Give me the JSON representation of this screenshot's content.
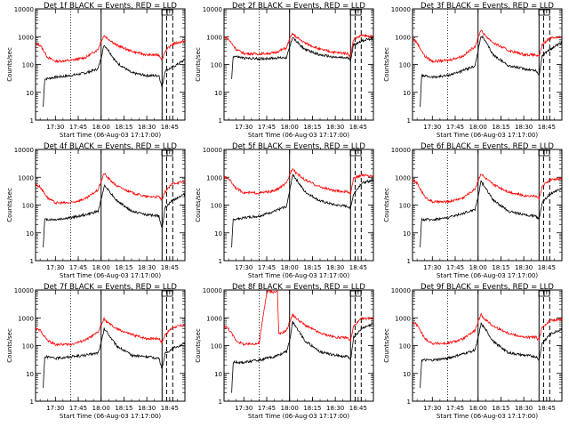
{
  "layout": {
    "rows": 3,
    "cols": 3
  },
  "common": {
    "ylabel": "Counts/sec",
    "xlabel": "Start Time (06-Aug-03 17:17:00)",
    "xticks": [
      "17:30",
      "17:45",
      "18:00",
      "18:15",
      "18:30",
      "18:45"
    ],
    "yticks": [
      "1",
      "10",
      "100",
      "1000",
      "10000"
    ],
    "yscale": "log",
    "ylim": [
      1,
      10000
    ],
    "xlim": [
      "17:17:00",
      "18:55:00"
    ],
    "grid": false,
    "colors": {
      "events": "#000000",
      "lld": "#ff0000"
    },
    "marks": {
      "dotted": "17:40",
      "solid": [
        "18:00",
        "18:40"
      ],
      "dashed": [
        "18:43",
        "18:47"
      ],
      "box": "18:41"
    }
  },
  "chart_data": [
    {
      "type": "line",
      "title": "Det 1f BLACK = Events, RED = LLD",
      "series": [
        {
          "name": "Events",
          "x": [
            "17:22",
            "17:23",
            "17:30",
            "17:40",
            "17:50",
            "17:58",
            "18:00",
            "18:02",
            "18:04",
            "18:10",
            "18:20",
            "18:30",
            "18:38",
            "18:40",
            "18:42",
            "18:47",
            "18:55"
          ],
          "values": [
            3,
            30,
            35,
            40,
            50,
            70,
            180,
            500,
            380,
            120,
            50,
            40,
            40,
            15,
            60,
            80,
            150
          ]
        },
        {
          "name": "LLD",
          "x": [
            "17:17",
            "17:20",
            "17:25",
            "17:30",
            "17:40",
            "17:50",
            "17:58",
            "18:00",
            "18:02",
            "18:04",
            "18:10",
            "18:20",
            "18:30",
            "18:38",
            "18:40",
            "18:42",
            "18:47",
            "18:55"
          ],
          "values": [
            550,
            500,
            180,
            130,
            140,
            180,
            350,
            700,
            1100,
            900,
            500,
            300,
            220,
            220,
            150,
            300,
            550,
            700
          ]
        }
      ]
    },
    {
      "type": "line",
      "title": "Det 2f BLACK = Events, RED = LLD",
      "series": [
        {
          "name": "Events",
          "x": [
            "17:22",
            "17:23",
            "17:30",
            "17:40",
            "17:50",
            "17:58",
            "18:00",
            "18:02",
            "18:04",
            "18:10",
            "18:20",
            "18:30",
            "18:38",
            "18:40",
            "18:42",
            "18:47",
            "18:55"
          ],
          "values": [
            30,
            200,
            170,
            160,
            170,
            180,
            400,
            1000,
            700,
            350,
            220,
            180,
            170,
            150,
            500,
            700,
            900
          ]
        },
        {
          "name": "LLD",
          "x": [
            "17:17",
            "17:20",
            "17:25",
            "17:30",
            "17:40",
            "17:50",
            "17:58",
            "18:00",
            "18:02",
            "18:04",
            "18:10",
            "18:20",
            "18:30",
            "18:38",
            "18:40",
            "18:42",
            "18:47",
            "18:55"
          ],
          "values": [
            1000,
            800,
            350,
            250,
            240,
            260,
            400,
            800,
            1300,
            1000,
            600,
            350,
            270,
            250,
            200,
            800,
            1100,
            1000
          ]
        }
      ]
    },
    {
      "type": "line",
      "title": "Det 3f BLACK = Events, RED = LLD",
      "series": [
        {
          "name": "Events",
          "x": [
            "17:22",
            "17:23",
            "17:30",
            "17:40",
            "17:50",
            "17:58",
            "18:00",
            "18:02",
            "18:04",
            "18:10",
            "18:20",
            "18:30",
            "18:38",
            "18:40",
            "18:42",
            "18:47",
            "18:55"
          ],
          "values": [
            3,
            40,
            35,
            40,
            60,
            90,
            300,
            1100,
            800,
            220,
            90,
            70,
            60,
            40,
            200,
            350,
            600
          ]
        },
        {
          "name": "LLD",
          "x": [
            "17:17",
            "17:20",
            "17:25",
            "17:30",
            "17:40",
            "17:50",
            "17:58",
            "18:00",
            "18:02",
            "18:04",
            "18:10",
            "18:20",
            "18:30",
            "18:38",
            "18:40",
            "18:42",
            "18:47",
            "18:55"
          ],
          "values": [
            900,
            600,
            200,
            130,
            140,
            200,
            450,
            900,
            1800,
            1200,
            600,
            320,
            230,
            220,
            180,
            500,
            900,
            1000
          ]
        }
      ]
    },
    {
      "type": "line",
      "title": "Det 4f BLACK = Events, RED = LLD",
      "series": [
        {
          "name": "Events",
          "x": [
            "17:22",
            "17:23",
            "17:30",
            "17:40",
            "17:50",
            "17:58",
            "18:00",
            "18:02",
            "18:04",
            "18:10",
            "18:20",
            "18:30",
            "18:38",
            "18:40",
            "18:42",
            "18:47",
            "18:55"
          ],
          "values": [
            3,
            30,
            30,
            35,
            45,
            60,
            150,
            500,
            400,
            150,
            60,
            45,
            40,
            15,
            80,
            150,
            250
          ]
        },
        {
          "name": "LLD",
          "x": [
            "17:17",
            "17:20",
            "17:25",
            "17:30",
            "17:40",
            "17:50",
            "17:58",
            "18:00",
            "18:02",
            "18:04",
            "18:10",
            "18:20",
            "18:30",
            "18:38",
            "18:40",
            "18:42",
            "18:47",
            "18:55"
          ],
          "values": [
            550,
            450,
            180,
            120,
            120,
            170,
            350,
            700,
            1400,
            1000,
            500,
            280,
            200,
            200,
            150,
            300,
            600,
            700
          ]
        }
      ]
    },
    {
      "type": "line",
      "title": "Det 5f BLACK = Events, RED = LLD",
      "series": [
        {
          "name": "Events",
          "x": [
            "17:22",
            "17:23",
            "17:30",
            "17:40",
            "17:50",
            "17:58",
            "18:00",
            "18:02",
            "18:04",
            "18:10",
            "18:20",
            "18:30",
            "18:38",
            "18:40",
            "18:42",
            "18:47",
            "18:55"
          ],
          "values": [
            3,
            30,
            35,
            40,
            60,
            90,
            300,
            1300,
            900,
            300,
            140,
            100,
            90,
            80,
            250,
            600,
            800
          ]
        },
        {
          "name": "LLD",
          "x": [
            "17:17",
            "17:20",
            "17:25",
            "17:30",
            "17:40",
            "17:50",
            "17:58",
            "18:00",
            "18:02",
            "18:04",
            "18:10",
            "18:20",
            "18:30",
            "18:38",
            "18:40",
            "18:42",
            "18:47",
            "18:55"
          ],
          "values": [
            1000,
            900,
            400,
            280,
            270,
            320,
            600,
            1200,
            2200,
            1500,
            800,
            450,
            320,
            300,
            250,
            900,
            1200,
            1100
          ]
        }
      ]
    },
    {
      "type": "line",
      "title": "Det 6f BLACK = Events, RED = LLD",
      "series": [
        {
          "name": "Events",
          "x": [
            "17:22",
            "17:23",
            "17:30",
            "17:40",
            "17:50",
            "17:58",
            "18:00",
            "18:02",
            "18:04",
            "18:10",
            "18:20",
            "18:30",
            "18:38",
            "18:40",
            "18:42",
            "18:47",
            "18:55"
          ],
          "values": [
            3,
            30,
            30,
            35,
            50,
            70,
            200,
            700,
            500,
            150,
            60,
            45,
            40,
            30,
            120,
            250,
            400
          ]
        },
        {
          "name": "LLD",
          "x": [
            "17:17",
            "17:20",
            "17:25",
            "17:30",
            "17:40",
            "17:50",
            "17:58",
            "18:00",
            "18:02",
            "18:04",
            "18:10",
            "18:20",
            "18:30",
            "18:38",
            "18:40",
            "18:42",
            "18:47",
            "18:55"
          ],
          "values": [
            800,
            600,
            200,
            130,
            130,
            180,
            380,
            750,
            1400,
            1000,
            550,
            300,
            220,
            210,
            170,
            450,
            800,
            900
          ]
        }
      ]
    },
    {
      "type": "line",
      "title": "Det 7f BLACK = Events, RED = LLD",
      "series": [
        {
          "name": "Events",
          "x": [
            "17:22",
            "17:23",
            "17:30",
            "17:40",
            "17:50",
            "17:58",
            "18:00",
            "18:02",
            "18:04",
            "18:10",
            "18:20",
            "18:30",
            "18:38",
            "18:40",
            "18:42",
            "18:47",
            "18:55"
          ],
          "values": [
            3,
            40,
            35,
            40,
            45,
            55,
            120,
            400,
            300,
            100,
            45,
            40,
            35,
            15,
            50,
            80,
            120
          ]
        },
        {
          "name": "LLD",
          "x": [
            "17:17",
            "17:20",
            "17:25",
            "17:30",
            "17:40",
            "17:50",
            "17:58",
            "18:00",
            "18:02",
            "18:04",
            "18:10",
            "18:20",
            "18:30",
            "18:38",
            "18:40",
            "18:42",
            "18:47",
            "18:55"
          ],
          "values": [
            400,
            350,
            150,
            110,
            110,
            160,
            300,
            550,
            900,
            700,
            400,
            250,
            180,
            180,
            130,
            250,
            450,
            550
          ]
        }
      ]
    },
    {
      "type": "line",
      "title": "Det 8f BLACK = Events, RED = LLD",
      "series": [
        {
          "name": "Events",
          "x": [
            "17:22",
            "17:23",
            "17:30",
            "17:40",
            "17:50",
            "17:58",
            "18:00",
            "18:02",
            "18:04",
            "18:10",
            "18:20",
            "18:30",
            "18:38",
            "18:40",
            "18:42",
            "18:47",
            "18:55"
          ],
          "values": [
            2,
            25,
            25,
            30,
            40,
            60,
            150,
            700,
            500,
            150,
            60,
            45,
            40,
            30,
            200,
            400,
            600
          ]
        },
        {
          "name": "LLD",
          "x": [
            "17:17",
            "17:20",
            "17:25",
            "17:30",
            "17:40",
            "17:45",
            "17:46",
            "17:50",
            "17:52",
            "17:53",
            "17:58",
            "18:00",
            "18:02",
            "18:04",
            "18:10",
            "18:20",
            "18:30",
            "18:38",
            "18:40",
            "18:42",
            "18:47",
            "18:55"
          ],
          "values": [
            500,
            400,
            150,
            110,
            120,
            8000,
            9000,
            8500,
            9000,
            250,
            350,
            700,
            1300,
            1000,
            550,
            280,
            200,
            190,
            150,
            500,
            900,
            1000
          ]
        }
      ]
    },
    {
      "type": "line",
      "title": "Det 9f BLACK = Events, RED = LLD",
      "series": [
        {
          "name": "Events",
          "x": [
            "17:22",
            "17:23",
            "17:30",
            "17:40",
            "17:50",
            "17:58",
            "18:00",
            "18:02",
            "18:04",
            "18:10",
            "18:20",
            "18:30",
            "18:38",
            "18:40",
            "18:42",
            "18:47",
            "18:55"
          ],
          "values": [
            3,
            30,
            30,
            35,
            50,
            70,
            180,
            600,
            450,
            140,
            55,
            45,
            40,
            30,
            120,
            250,
            400
          ]
        },
        {
          "name": "LLD",
          "x": [
            "17:17",
            "17:20",
            "17:25",
            "17:30",
            "17:40",
            "17:50",
            "17:58",
            "18:00",
            "18:02",
            "18:04",
            "18:10",
            "18:20",
            "18:30",
            "18:38",
            "18:40",
            "18:42",
            "18:47",
            "18:55"
          ],
          "values": [
            700,
            550,
            180,
            120,
            120,
            170,
            350,
            700,
            1300,
            950,
            500,
            280,
            200,
            200,
            160,
            450,
            800,
            900
          ]
        }
      ]
    }
  ]
}
